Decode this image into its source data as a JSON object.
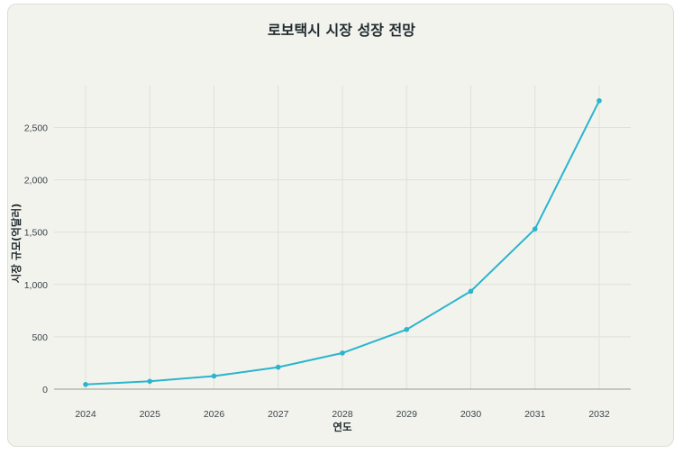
{
  "chart_data": {
    "type": "line",
    "title": "로보택시 시장 성장 전망",
    "xlabel": "연도",
    "ylabel": "시장 규모(억달러)",
    "x": [
      "2024",
      "2025",
      "2026",
      "2027",
      "2028",
      "2029",
      "2030",
      "2031",
      "2032"
    ],
    "series": [
      {
        "values": [
          45,
          75,
          125,
          210,
          345,
          570,
          935,
          1530,
          2755
        ]
      }
    ],
    "yticks": [
      0,
      500,
      1000,
      1500,
      2000,
      2500
    ],
    "ytick_labels": [
      "0",
      "500",
      "1,000",
      "1,500",
      "2,000",
      "2,500"
    ],
    "ylim": [
      0,
      2900
    ],
    "grid": true,
    "legend": "none",
    "line_color": "#29b5cc"
  }
}
